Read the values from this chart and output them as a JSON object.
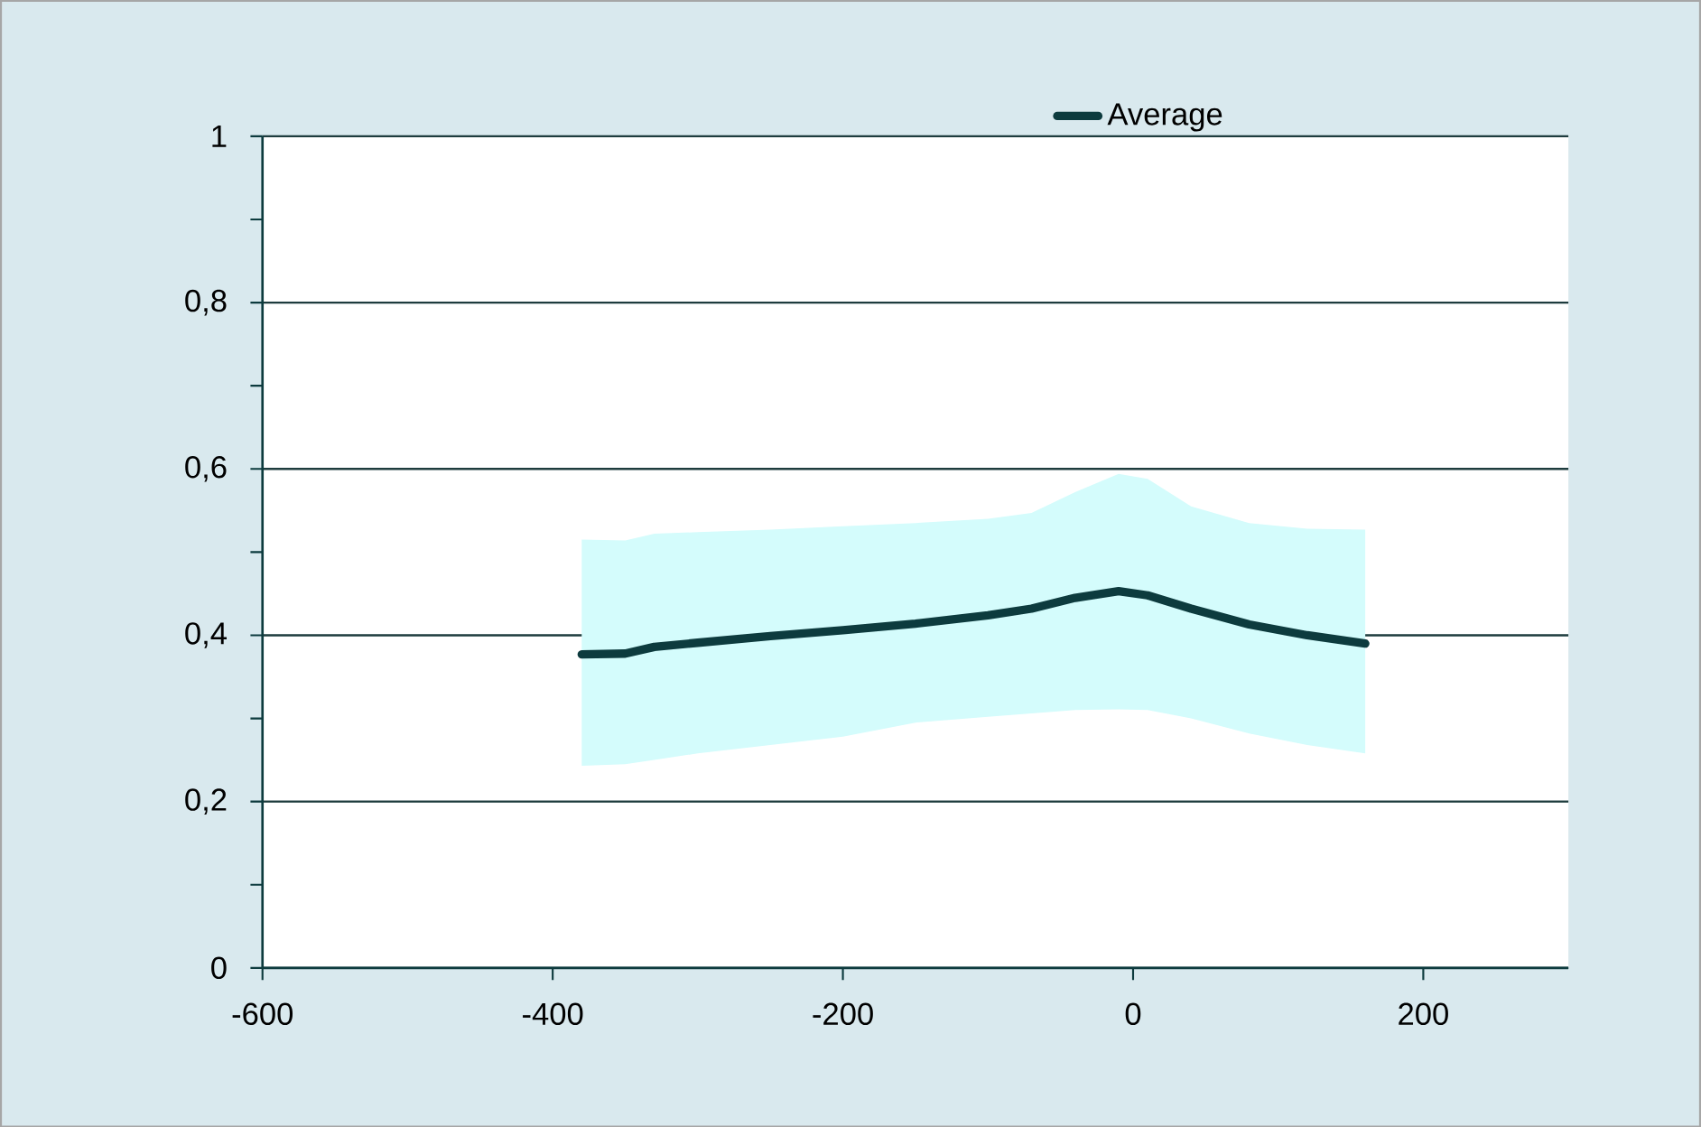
{
  "chart_data": {
    "type": "line",
    "xlim": [
      -600,
      300
    ],
    "ylim": [
      0,
      1
    ],
    "xticks": [
      -600,
      -400,
      -200,
      0,
      200
    ],
    "yticks": [
      0,
      {
        "value": 0.2,
        "label": "0,2"
      },
      {
        "value": 0.4,
        "label": "0,4"
      },
      {
        "value": 0.6,
        "label": "0,6"
      },
      {
        "value": 0.8,
        "label": "0,8"
      },
      1
    ],
    "grid": "y",
    "legend": "top",
    "marker": "none",
    "line_style": "solid",
    "series": [
      {
        "name": "Average",
        "color": "#0d3b3e",
        "x": [
          -380,
          -350,
          -330,
          -300,
          -250,
          -200,
          -150,
          -100,
          -70,
          -40,
          -10,
          10,
          40,
          80,
          120,
          160
        ],
        "values": [
          0.377,
          0.378,
          0.386,
          0.391,
          0.399,
          0.406,
          0.414,
          0.424,
          0.432,
          0.445,
          0.453,
          0.448,
          0.432,
          0.413,
          0.4,
          0.39
        ],
        "upper": [
          0.515,
          0.514,
          0.522,
          0.524,
          0.527,
          0.531,
          0.535,
          0.54,
          0.547,
          0.572,
          0.594,
          0.588,
          0.555,
          0.535,
          0.528,
          0.527
        ],
        "lower": [
          0.243,
          0.245,
          0.25,
          0.258,
          0.268,
          0.278,
          0.295,
          0.302,
          0.306,
          0.31,
          0.311,
          0.31,
          0.3,
          0.282,
          0.268,
          0.258
        ]
      }
    ]
  }
}
